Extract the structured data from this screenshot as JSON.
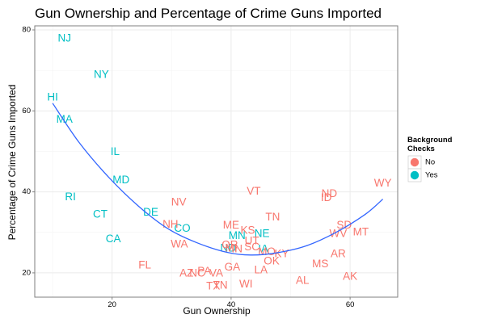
{
  "chart_data": {
    "type": "scatter",
    "title": "Gun Ownership and Percentage of Crime Guns Imported",
    "xlabel": "Gun Ownership",
    "ylabel": "Percentage of Crime Guns Imported",
    "xlim": [
      7,
      68
    ],
    "ylim": [
      14,
      81
    ],
    "xticks": [
      20,
      40,
      60
    ],
    "yticks": [
      20,
      40,
      60,
      80
    ],
    "grid": true,
    "legend": {
      "title": "Background\nChecks",
      "position": "right",
      "entries": [
        {
          "label": "No",
          "color": "#F8766D"
        },
        {
          "label": "Yes",
          "color": "#00BFC4"
        }
      ]
    },
    "colors": {
      "No": "#F8766D",
      "Yes": "#00BFC4",
      "fit": "#3366FF"
    },
    "points": [
      {
        "label": "NJ",
        "x": 12.0,
        "y": 78.0,
        "group": "Yes"
      },
      {
        "label": "NY",
        "x": 18.2,
        "y": 69.0,
        "group": "Yes"
      },
      {
        "label": "HI",
        "x": 10.0,
        "y": 63.5,
        "group": "Yes"
      },
      {
        "label": "MA",
        "x": 12.0,
        "y": 58.0,
        "group": "Yes"
      },
      {
        "label": "IL",
        "x": 20.5,
        "y": 50.0,
        "group": "Yes"
      },
      {
        "label": "MD",
        "x": 21.5,
        "y": 43.0,
        "group": "Yes"
      },
      {
        "label": "RI",
        "x": 13.0,
        "y": 38.8,
        "group": "Yes"
      },
      {
        "label": "CT",
        "x": 18.0,
        "y": 34.5,
        "group": "Yes"
      },
      {
        "label": "DE",
        "x": 26.5,
        "y": 35.0,
        "group": "Yes"
      },
      {
        "label": "CA",
        "x": 20.2,
        "y": 28.5,
        "group": "Yes"
      },
      {
        "label": "CO",
        "x": 31.8,
        "y": 31.0,
        "group": "Yes"
      },
      {
        "label": "MN",
        "x": 41.0,
        "y": 29.3,
        "group": "Yes"
      },
      {
        "label": "NE",
        "x": 45.2,
        "y": 29.8,
        "group": "Yes"
      },
      {
        "label": "IA",
        "x": 45.4,
        "y": 26.0,
        "group": "Yes"
      },
      {
        "label": "ND",
        "x": 39.5,
        "y": 26.2,
        "group": "Yes"
      },
      {
        "label": "NV",
        "x": 31.2,
        "y": 37.5,
        "group": "No"
      },
      {
        "label": "VT",
        "x": 43.8,
        "y": 40.2,
        "group": "No"
      },
      {
        "label": "WY",
        "x": 65.5,
        "y": 42.2,
        "group": "No"
      },
      {
        "label": "ND",
        "x": 56.5,
        "y": 39.6,
        "group": "No"
      },
      {
        "label": "ID",
        "x": 56.0,
        "y": 38.6,
        "group": "No"
      },
      {
        "label": "TN",
        "x": 47.0,
        "y": 33.8,
        "group": "No"
      },
      {
        "label": "NH",
        "x": 29.8,
        "y": 32.0,
        "group": "No"
      },
      {
        "label": "ME",
        "x": 40.0,
        "y": 31.8,
        "group": "No"
      },
      {
        "label": "KS",
        "x": 42.8,
        "y": 30.6,
        "group": "No"
      },
      {
        "label": "SD",
        "x": 59.0,
        "y": 31.8,
        "group": "No"
      },
      {
        "label": "MT",
        "x": 61.8,
        "y": 30.2,
        "group": "No"
      },
      {
        "label": "WV",
        "x": 58.0,
        "y": 29.8,
        "group": "No"
      },
      {
        "label": "UT",
        "x": 43.5,
        "y": 28.0,
        "group": "No"
      },
      {
        "label": "WA",
        "x": 31.3,
        "y": 27.2,
        "group": "No"
      },
      {
        "label": "OR",
        "x": 39.8,
        "y": 27.0,
        "group": "No"
      },
      {
        "label": "MI",
        "x": 40.0,
        "y": 26.2,
        "group": "No"
      },
      {
        "label": "SC",
        "x": 43.5,
        "y": 26.5,
        "group": "No"
      },
      {
        "label": "IN",
        "x": 41.0,
        "y": 26.0,
        "group": "No"
      },
      {
        "label": "MO",
        "x": 46.0,
        "y": 25.3,
        "group": "No"
      },
      {
        "label": "KY",
        "x": 48.5,
        "y": 24.8,
        "group": "No"
      },
      {
        "label": "AR",
        "x": 58.0,
        "y": 24.8,
        "group": "No"
      },
      {
        "label": "OK",
        "x": 46.8,
        "y": 23.0,
        "group": "No"
      },
      {
        "label": "MS",
        "x": 55.0,
        "y": 22.3,
        "group": "No"
      },
      {
        "label": "FL",
        "x": 25.5,
        "y": 22.0,
        "group": "No"
      },
      {
        "label": "GA",
        "x": 40.2,
        "y": 21.5,
        "group": "No"
      },
      {
        "label": "LA",
        "x": 45.0,
        "y": 20.8,
        "group": "No"
      },
      {
        "label": "AZ",
        "x": 32.5,
        "y": 20.0,
        "group": "No"
      },
      {
        "label": "NC",
        "x": 34.3,
        "y": 20.0,
        "group": "No"
      },
      {
        "label": "PA",
        "x": 35.5,
        "y": 20.5,
        "group": "No"
      },
      {
        "label": "VA",
        "x": 37.5,
        "y": 20.0,
        "group": "No"
      },
      {
        "label": "AK",
        "x": 60.0,
        "y": 19.2,
        "group": "No"
      },
      {
        "label": "AL",
        "x": 52.0,
        "y": 18.2,
        "group": "No"
      },
      {
        "label": "TX",
        "x": 37.0,
        "y": 16.8,
        "group": "No"
      },
      {
        "label": "TN",
        "x": 38.2,
        "y": 17.0,
        "group": "No"
      },
      {
        "label": "WI",
        "x": 42.5,
        "y": 17.3,
        "group": "No"
      }
    ],
    "fit_curve": [
      [
        10,
        61.9
      ],
      [
        14.5,
        52.1
      ],
      [
        19.5,
        43.5
      ],
      [
        24.5,
        36.4
      ],
      [
        29.5,
        30.8
      ],
      [
        34.5,
        27.3
      ],
      [
        39.5,
        25.0
      ],
      [
        43.3,
        24.4
      ],
      [
        47.5,
        24.9
      ],
      [
        52.5,
        26.6
      ],
      [
        57.5,
        29.9
      ],
      [
        62.5,
        34.4
      ],
      [
        65.5,
        38.2
      ]
    ]
  }
}
